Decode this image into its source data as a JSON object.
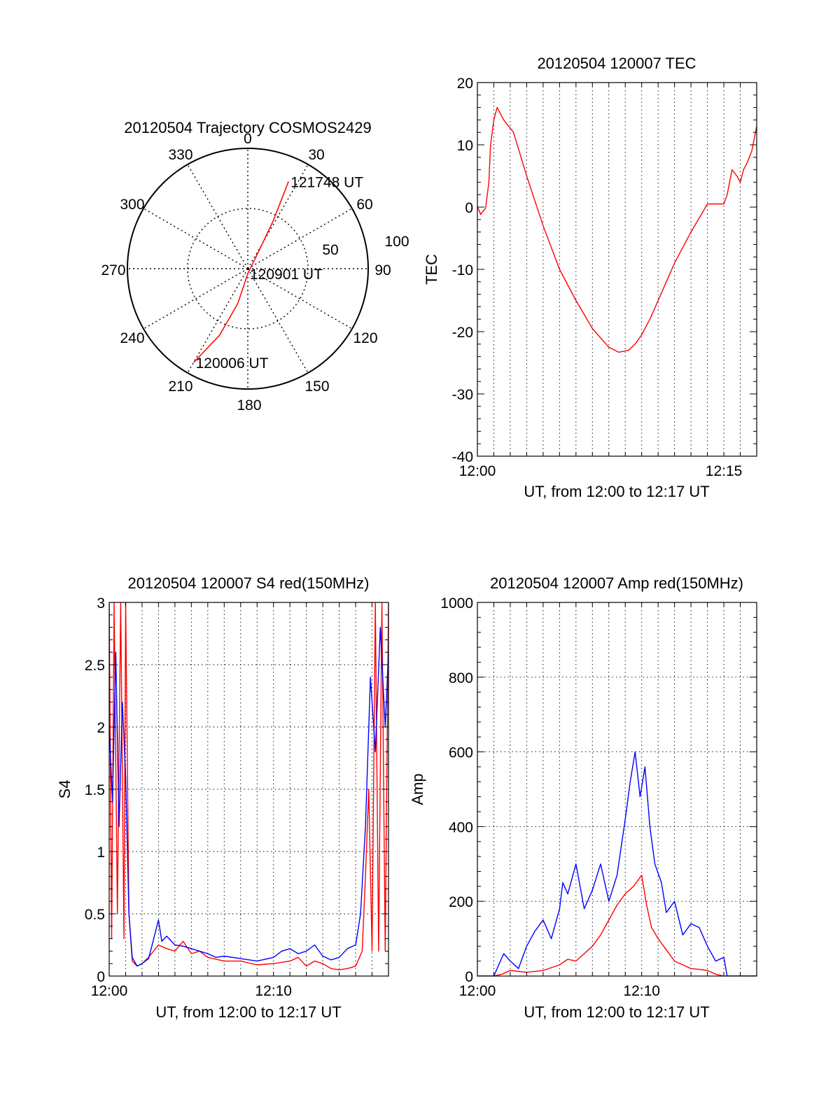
{
  "chart_data": [
    {
      "type": "polar",
      "title": "20120504 Trajectory COSMOS2429",
      "angle_labels": [
        "0",
        "30",
        "60",
        "90",
        "120",
        "150",
        "180",
        "210",
        "240",
        "270",
        "300",
        "330"
      ],
      "radial_labels": [
        "50",
        "100"
      ],
      "rlim": [
        0,
        100
      ],
      "grid": true,
      "series": [
        {
          "color": "#ff0000",
          "points": [
            {
              "az": 210,
              "r": 90,
              "label": "120006 UT"
            },
            {
              "az": 203,
              "r": 60
            },
            {
              "az": 196,
              "r": 30
            },
            {
              "az": 180,
              "r": 4,
              "label": "120901 UT"
            },
            {
              "az": 35,
              "r": 12
            },
            {
              "az": 28,
              "r": 45
            },
            {
              "az": 25,
              "r": 80,
              "label": "121748 UT"
            }
          ]
        }
      ]
    },
    {
      "type": "line",
      "title": "20120504 120007 TEC",
      "xlabel": "UT, from 12:00 to 12:17 UT",
      "ylabel": "TEC",
      "xlim": [
        0,
        17
      ],
      "ylim": [
        -40,
        20
      ],
      "xticks": [
        {
          "v": 0,
          "label": "12:00"
        },
        {
          "v": 15,
          "label": "12:15"
        }
      ],
      "yticks": [
        {
          "v": 20,
          "label": "20"
        },
        {
          "v": 10,
          "label": "10"
        },
        {
          "v": 0,
          "label": "0"
        },
        {
          "v": -10,
          "label": "-10"
        },
        {
          "v": -20,
          "label": "-20"
        },
        {
          "v": -30,
          "label": "-30"
        },
        {
          "v": -40,
          "label": "-40"
        }
      ],
      "grid": "vertical",
      "series": [
        {
          "color": "#ff0000",
          "x": [
            0,
            0.1,
            0.2,
            0.3,
            0.5,
            0.7,
            0.8,
            1.0,
            1.2,
            1.6,
            2.2,
            3.0,
            4.0,
            5.0,
            6.0,
            7.0,
            8.0,
            8.6,
            9.2,
            9.6,
            10.0,
            10.5,
            11.0,
            11.5,
            12.0,
            13.0,
            14.0,
            15.0,
            15.2,
            15.5,
            15.8,
            16.0,
            16.2,
            16.4,
            16.7,
            17.0
          ],
          "y": [
            0,
            -0.5,
            -1.2,
            -0.8,
            -0.2,
            4,
            10,
            14,
            16,
            14,
            12,
            5,
            -3,
            -10,
            -15,
            -19.5,
            -22.5,
            -23.3,
            -23,
            -22,
            -20.5,
            -18,
            -15,
            -12,
            -9,
            -4,
            0.5,
            0.5,
            2,
            6,
            5,
            4,
            6,
            7,
            9,
            13
          ]
        }
      ]
    },
    {
      "type": "line",
      "title": "20120504 120007 S4 red(150MHz)",
      "xlabel": "UT, from 12:00 to 12:17 UT",
      "ylabel": "S4",
      "xlim": [
        0,
        17
      ],
      "ylim": [
        0,
        3
      ],
      "xticks": [
        {
          "v": 0,
          "label": "12:00"
        },
        {
          "v": 10,
          "label": "12:10"
        }
      ],
      "yticks": [
        {
          "v": 3,
          "label": "3"
        },
        {
          "v": 2.5,
          "label": "2.5"
        },
        {
          "v": 2,
          "label": "2"
        },
        {
          "v": 1.5,
          "label": "1.5"
        },
        {
          "v": 1,
          "label": "1"
        },
        {
          "v": 0.5,
          "label": "0.5"
        },
        {
          "v": 0,
          "label": "0"
        }
      ],
      "grid": "both",
      "series": [
        {
          "color": "#ff0000",
          "x": [
            0,
            0.15,
            0.3,
            0.5,
            0.7,
            0.9,
            1.0,
            1.2,
            1.4,
            1.7,
            2.0,
            2.4,
            3.0,
            3.5,
            4.0,
            4.5,
            5.0,
            5.5,
            6.0,
            7.0,
            8.0,
            9.0,
            10.0,
            11.0,
            11.5,
            12.0,
            12.5,
            13.0,
            13.5,
            14.0,
            14.5,
            15.0,
            15.4,
            15.6,
            15.8,
            16.0,
            16.2,
            16.4,
            16.6,
            16.8,
            17.0
          ],
          "y": [
            3,
            0.3,
            3,
            0.5,
            3,
            0.3,
            3,
            0.5,
            0.12,
            0.08,
            0.1,
            0.15,
            0.25,
            0.22,
            0.2,
            0.28,
            0.18,
            0.2,
            0.15,
            0.12,
            0.12,
            0.09,
            0.1,
            0.12,
            0.15,
            0.08,
            0.12,
            0.1,
            0.06,
            0.05,
            0.06,
            0.08,
            0.2,
            0.8,
            1.5,
            0.2,
            3,
            0.2,
            3,
            0.2,
            3
          ]
        },
        {
          "color": "#0000ff",
          "x": [
            0,
            0.2,
            0.4,
            0.6,
            0.8,
            1.0,
            1.2,
            1.4,
            1.7,
            2.0,
            2.4,
            3.0,
            3.2,
            3.5,
            4.0,
            4.5,
            5.0,
            5.5,
            6.0,
            6.5,
            7.0,
            8.0,
            9.0,
            10.0,
            10.5,
            11.0,
            11.5,
            12.0,
            12.5,
            13.0,
            13.5,
            14.0,
            14.5,
            15.0,
            15.3,
            15.6,
            15.9,
            16.2,
            16.5,
            16.8,
            17.0
          ],
          "y": [
            2.0,
            1.4,
            2.6,
            1.2,
            2.2,
            1.6,
            0.5,
            0.15,
            0.08,
            0.1,
            0.14,
            0.45,
            0.28,
            0.32,
            0.25,
            0.24,
            0.22,
            0.2,
            0.18,
            0.15,
            0.16,
            0.14,
            0.12,
            0.15,
            0.2,
            0.22,
            0.18,
            0.2,
            0.25,
            0.16,
            0.13,
            0.15,
            0.22,
            0.25,
            0.5,
            1.2,
            2.4,
            1.8,
            2.8,
            2.0,
            2.6
          ]
        }
      ]
    },
    {
      "type": "line",
      "title": "20120504 120007 Amp red(150MHz)",
      "xlabel": "UT, from 12:00 to 12:17 UT",
      "ylabel": "Amp",
      "xlim": [
        0,
        17
      ],
      "ylim": [
        0,
        1000
      ],
      "xticks": [
        {
          "v": 0,
          "label": "12:00"
        },
        {
          "v": 10,
          "label": "12:10"
        }
      ],
      "yticks": [
        {
          "v": 1000,
          "label": "1000"
        },
        {
          "v": 800,
          "label": "800"
        },
        {
          "v": 600,
          "label": "600"
        },
        {
          "v": 400,
          "label": "400"
        },
        {
          "v": 200,
          "label": "200"
        },
        {
          "v": 0,
          "label": "0"
        }
      ],
      "grid": "both",
      "series": [
        {
          "color": "#ff0000",
          "x": [
            0,
            1.0,
            1.5,
            2.0,
            3.0,
            4.0,
            5.0,
            5.5,
            6.0,
            6.5,
            7.0,
            7.5,
            8.0,
            8.5,
            9.0,
            9.5,
            10.0,
            10.3,
            10.6,
            11.0,
            11.5,
            12.0,
            12.5,
            13.0,
            13.5,
            14.0,
            14.5,
            15.0,
            17.0
          ],
          "y": [
            0,
            0,
            5,
            15,
            10,
            15,
            30,
            45,
            40,
            60,
            80,
            110,
            150,
            190,
            220,
            240,
            270,
            190,
            130,
            100,
            70,
            40,
            30,
            20,
            18,
            15,
            5,
            0,
            0
          ]
        },
        {
          "color": "#0000ff",
          "x": [
            0,
            1.0,
            1.3,
            1.6,
            2.0,
            2.5,
            3.0,
            3.5,
            4.0,
            4.5,
            5.0,
            5.2,
            5.5,
            6.0,
            6.5,
            7.0,
            7.5,
            8.0,
            8.5,
            9.0,
            9.3,
            9.6,
            9.9,
            10.2,
            10.5,
            10.8,
            11.2,
            11.5,
            12.0,
            12.5,
            13.0,
            13.5,
            14.0,
            14.5,
            15.0,
            15.2,
            17.0
          ],
          "y": [
            0,
            0,
            30,
            60,
            40,
            20,
            80,
            120,
            150,
            100,
            180,
            250,
            220,
            300,
            180,
            230,
            300,
            200,
            270,
            420,
            520,
            600,
            480,
            560,
            400,
            300,
            250,
            170,
            200,
            110,
            140,
            130,
            80,
            40,
            50,
            0,
            0
          ]
        }
      ]
    }
  ]
}
